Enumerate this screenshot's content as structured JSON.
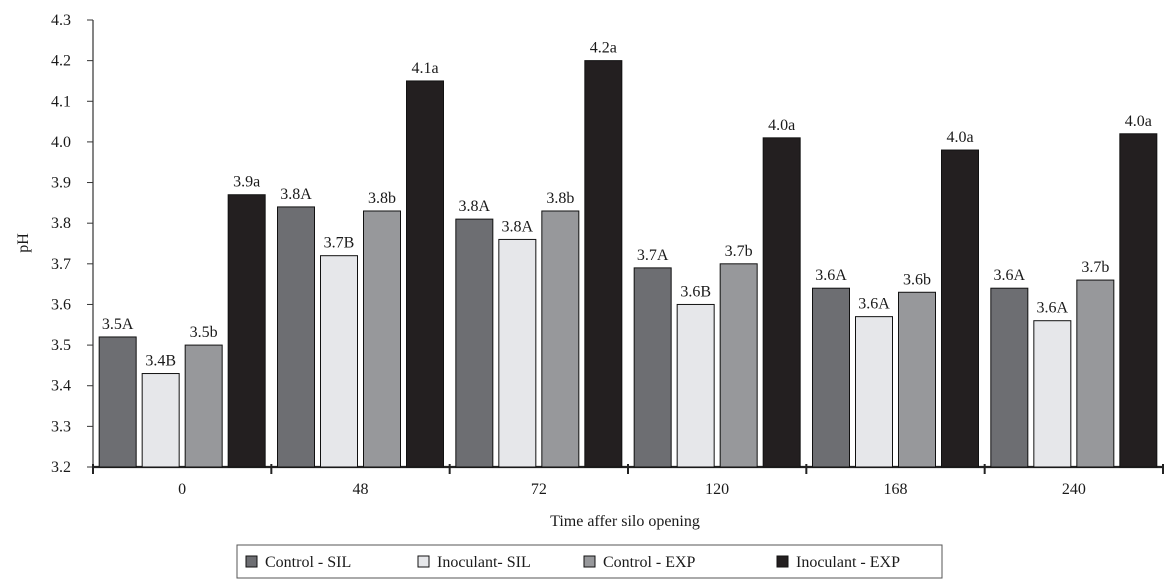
{
  "chart_data": {
    "type": "bar",
    "xlabel": "Time affer silo opening",
    "ylabel": "pH",
    "ylim": [
      3.2,
      4.3
    ],
    "ytick_step": 0.1,
    "grid": false,
    "legend_position": "bottom",
    "categories": [
      "0",
      "48",
      "72",
      "120",
      "168",
      "240"
    ],
    "series": [
      {
        "name": "Control - SIL",
        "color": "#6d6e72",
        "values": [
          3.52,
          3.84,
          3.81,
          3.69,
          3.64,
          3.64
        ],
        "labels": [
          "3.5A",
          "3.8A",
          "3.8A",
          "3.7A",
          "3.6A",
          "3.6A"
        ]
      },
      {
        "name": "Inoculant- SIL",
        "color": "#e6e7ea",
        "values": [
          3.43,
          3.72,
          3.76,
          3.6,
          3.57,
          3.56
        ],
        "labels": [
          "3.4B",
          "3.7B",
          "3.8A",
          "3.6B",
          "3.6A",
          "3.6A"
        ]
      },
      {
        "name": "Control - EXP",
        "color": "#97989b",
        "values": [
          3.5,
          3.83,
          3.83,
          3.7,
          3.63,
          3.66
        ],
        "labels": [
          "3.5b",
          "3.8b",
          "3.8b",
          "3.7b",
          "3.6b",
          "3.7b"
        ]
      },
      {
        "name": "Inoculant - EXP",
        "color": "#231f20",
        "values": [
          3.87,
          4.15,
          4.2,
          4.01,
          3.98,
          4.02
        ],
        "labels": [
          "3.9a",
          "4.1a",
          "4.2a",
          "4.0a",
          "4.0a",
          "4.0a"
        ]
      }
    ]
  }
}
